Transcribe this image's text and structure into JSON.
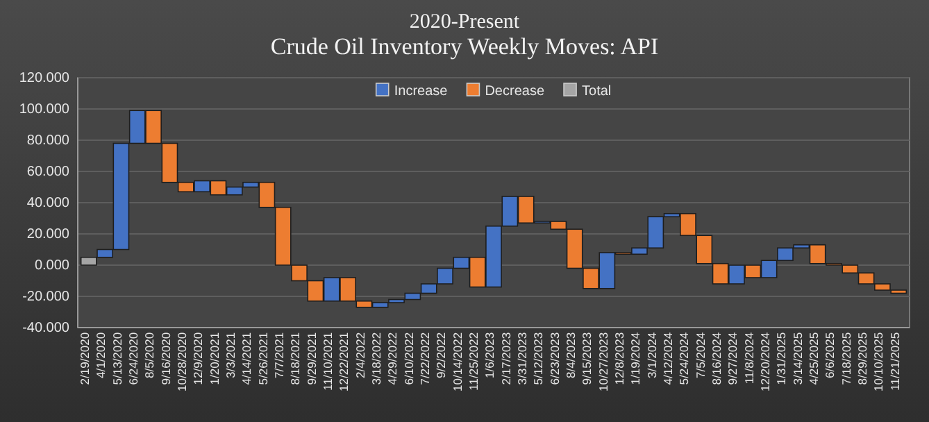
{
  "chart_data": {
    "type": "bar",
    "title": "2020-Present",
    "subtitle": "Crude Oil Inventory Weekly Moves: API",
    "categories": [
      "2/19/2020",
      "4/1/2020",
      "5/13/2020",
      "6/24/2020",
      "8/5/2020",
      "9/16/2020",
      "10/28/2020",
      "12/9/2020",
      "1/20/2021",
      "3/3/2021",
      "4/14/2021",
      "5/26/2021",
      "7/7/2021",
      "8/18/2021",
      "9/29/2021",
      "11/10/2021",
      "12/22/2021",
      "2/4/2022",
      "3/18/2022",
      "4/29/2022",
      "6/10/2022",
      "7/22/2022",
      "9/2/2022",
      "10/14/2022",
      "11/25/2022",
      "1/6/2023",
      "2/17/2023",
      "3/31/2023",
      "5/12/2023",
      "6/23/2023",
      "8/4/2023",
      "9/15/2023",
      "10/27/2023",
      "12/8/2023",
      "1/19/2024",
      "3/1/2024",
      "4/12/2024",
      "5/24/2024",
      "7/5/2024",
      "8/16/2024",
      "9/27/2024",
      "11/8/2024",
      "12/20/2024",
      "1/31/2025",
      "3/14/2025",
      "4/25/2025",
      "6/6/2025",
      "7/18/2025",
      "8/29/2025",
      "10/10/2025",
      "11/21/2025"
    ],
    "series": [
      {
        "name": "Increase",
        "color": "#4472c4",
        "base": [
          null,
          5,
          10,
          78,
          null,
          null,
          null,
          47,
          null,
          45,
          50,
          null,
          null,
          null,
          null,
          -23,
          null,
          null,
          -27,
          -24,
          -22,
          -18,
          -12,
          -2,
          null,
          -14,
          25,
          null,
          27,
          null,
          null,
          null,
          -15,
          null,
          7,
          11,
          31,
          null,
          null,
          null,
          -12,
          null,
          -8,
          3,
          11,
          null,
          null,
          null,
          null,
          null,
          null
        ],
        "values": [
          null,
          5,
          68,
          21,
          null,
          null,
          null,
          7,
          null,
          5,
          3,
          null,
          null,
          null,
          null,
          15,
          null,
          null,
          3,
          2,
          4,
          6,
          10,
          7,
          null,
          39,
          19,
          null,
          1,
          null,
          null,
          null,
          23,
          null,
          4,
          20,
          2,
          null,
          null,
          null,
          12,
          null,
          11,
          8,
          2,
          null,
          null,
          null,
          null,
          null,
          null
        ]
      },
      {
        "name": "Decrease",
        "color": "#ed7d31",
        "base": [
          null,
          null,
          null,
          null,
          99,
          78,
          53,
          null,
          54,
          null,
          null,
          53,
          37,
          0,
          -10,
          null,
          -8,
          -23,
          null,
          null,
          null,
          null,
          null,
          null,
          5,
          null,
          null,
          44,
          null,
          28,
          23,
          -2,
          null,
          8,
          null,
          null,
          null,
          33,
          19,
          1,
          null,
          0,
          null,
          null,
          null,
          13,
          1,
          0,
          -5,
          -12,
          -16
        ],
        "values": [
          null,
          null,
          null,
          null,
          -21,
          -25,
          -6,
          null,
          -9,
          null,
          null,
          -16,
          -37,
          -10,
          -13,
          null,
          -15,
          -4,
          null,
          null,
          null,
          null,
          null,
          null,
          -19,
          null,
          null,
          -17,
          null,
          -5,
          -25,
          -13,
          null,
          -1,
          null,
          null,
          null,
          -14,
          -18,
          -13,
          null,
          -8,
          null,
          null,
          null,
          -12,
          -1,
          -5,
          -7,
          -4,
          -2
        ]
      },
      {
        "name": "Total",
        "color": "#a5a5a5",
        "values": [
          5,
          null,
          null,
          null,
          null,
          null,
          null,
          null,
          null,
          null,
          null,
          null,
          null,
          null,
          null,
          null,
          null,
          null,
          null,
          null,
          null,
          null,
          null,
          null,
          null,
          null,
          null,
          null,
          null,
          null,
          null,
          null,
          null,
          null,
          null,
          null,
          null,
          null,
          null,
          null,
          null,
          null,
          null,
          null,
          null,
          null,
          null,
          null,
          null,
          null,
          null
        ]
      }
    ],
    "ylim": [
      -40,
      120
    ],
    "yticks": [
      {
        "value": -40,
        "label": "-40.000"
      },
      {
        "value": -20,
        "label": "-20.000"
      },
      {
        "value": 0,
        "label": "0.000"
      },
      {
        "value": 20,
        "label": "20.000"
      },
      {
        "value": 40,
        "label": "40.000"
      },
      {
        "value": 60,
        "label": "60.000"
      },
      {
        "value": 80,
        "label": "80.000"
      },
      {
        "value": 100,
        "label": "100.000"
      },
      {
        "value": 120,
        "label": "120.000"
      }
    ],
    "grid": "y",
    "legend": "top"
  }
}
